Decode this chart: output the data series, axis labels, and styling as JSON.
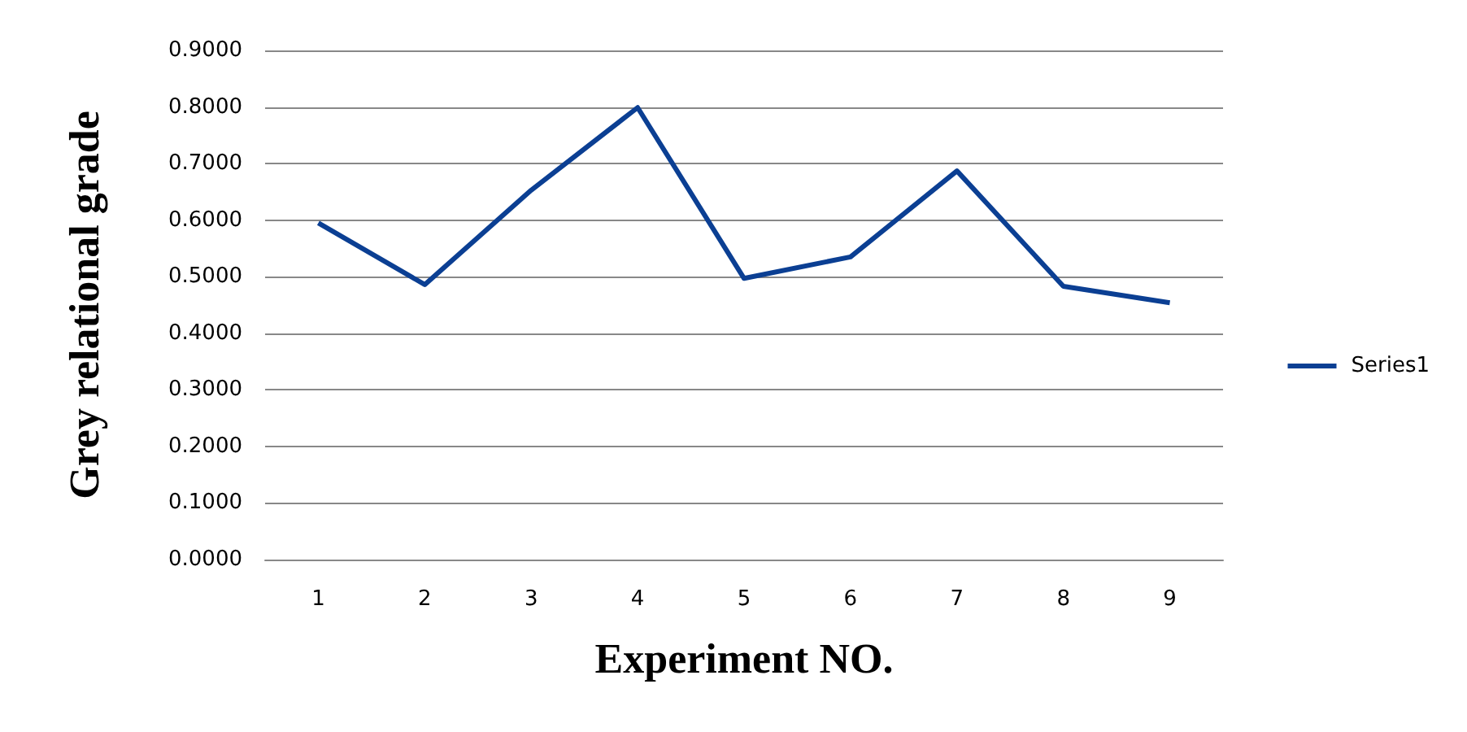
{
  "chart_data": {
    "type": "line",
    "xlabel": "Experiment NO.",
    "ylabel": "Grey relational grade",
    "categories": [
      "1",
      "2",
      "3",
      "4",
      "5",
      "6",
      "7",
      "8",
      "9"
    ],
    "series": [
      {
        "name": "Series1",
        "color": "#0b3f93",
        "values": [
          0.595,
          0.486,
          0.653,
          0.799,
          0.497,
          0.535,
          0.687,
          0.483,
          0.454
        ]
      }
    ],
    "ylim": [
      0,
      0.9
    ],
    "yticks": [
      {
        "value": 0,
        "label": "0.0000"
      },
      {
        "value": 0.1,
        "label": "0.1000"
      },
      {
        "value": 0.2,
        "label": "0.2000"
      },
      {
        "value": 0.3,
        "label": "0.3000"
      },
      {
        "value": 0.4,
        "label": "0.4000"
      },
      {
        "value": 0.5,
        "label": "0.5000"
      },
      {
        "value": 0.6,
        "label": "0.6000"
      },
      {
        "value": 0.7,
        "label": "0.7000"
      },
      {
        "value": 0.8,
        "label": "0.8000"
      },
      {
        "value": 0.9,
        "label": "0.9000"
      }
    ],
    "grid": "y",
    "legend": "right",
    "marker": "none",
    "line_style": "solid"
  }
}
